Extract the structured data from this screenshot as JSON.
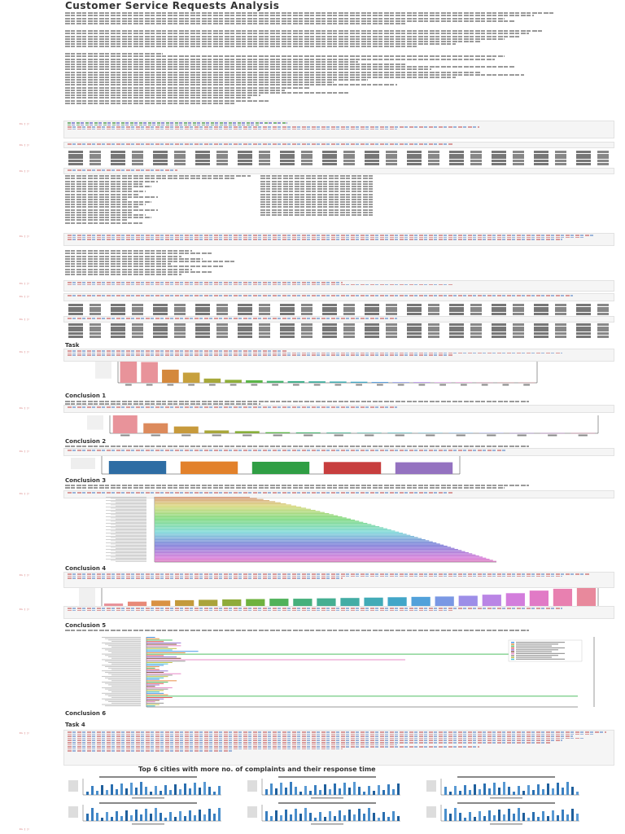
{
  "notebook": {
    "title": "Customer Service Requests Analysis",
    "sections": {
      "conclusion1": "Conclusion 1",
      "conclusion2": "Conclusion 2",
      "conclusion3": "Conclusion 3",
      "conclusion4": "Conclusion 4",
      "conclusion5": "Conclusion 5",
      "conclusion6": "Conclusion 6",
      "task4": "Task 4"
    },
    "cell_prompt": "In [ ]:",
    "final_title": "Top 6 cities with more no. of complaints and their response time"
  },
  "charts": {
    "chart1": {
      "type": "bar",
      "values": [
        100,
        98,
        62,
        48,
        20,
        14,
        12,
        9,
        8,
        7,
        6,
        5,
        4,
        3,
        3,
        2,
        2,
        1,
        1,
        1
      ],
      "colors": [
        "#e8939a",
        "#e8939a",
        "#d4883c",
        "#c7a03d",
        "#a7a83a",
        "#8fae3a",
        "#5bb548",
        "#49b370",
        "#45b08d",
        "#44ae9f",
        "#42acb1",
        "#42a6c4",
        "#5fa0dd",
        "#8b94e6",
        "#b188e8",
        "#d07fe0",
        "#e07bc9",
        "#e882ad",
        "#e88c95",
        "#e8939a"
      ]
    },
    "chart2": {
      "type": "bar",
      "values": [
        100,
        56,
        38,
        16,
        12,
        6,
        5,
        4,
        3,
        3,
        2,
        2,
        2,
        1,
        1,
        1
      ],
      "colors": [
        "#e8939a",
        "#dc8a5c",
        "#c79a3c",
        "#a8a63a",
        "#88ae3a",
        "#5bb548",
        "#49b370",
        "#45b08d",
        "#44ae9f",
        "#42acb1",
        "#42a6c4",
        "#5fa0dd",
        "#8b94e6",
        "#b188e8",
        "#d07fe0",
        "#e882ad"
      ]
    },
    "chart3": {
      "type": "bar",
      "values": [
        5.0,
        4.8,
        4.7,
        4.6,
        4.5
      ],
      "colors": [
        "#2e6da4",
        "#e2812b",
        "#2f9e44",
        "#c73e3e",
        "#9472c0"
      ]
    },
    "chart4": {
      "type": "bar",
      "orientation": "horizontal",
      "bar_count": 60
    },
    "chart5": {
      "type": "bar",
      "values": [
        20,
        25,
        28,
        29,
        30,
        31,
        32,
        33,
        33,
        34,
        35,
        36,
        37,
        38,
        39,
        41,
        44,
        48,
        55,
        60,
        62
      ],
      "colors": [
        "#e8939a",
        "#e88a78",
        "#d99244",
        "#c39a3c",
        "#aaa33a",
        "#8fab3a",
        "#6fb23f",
        "#50b25a",
        "#46b07c",
        "#45af92",
        "#43ada5",
        "#42abb7",
        "#42a6c8",
        "#52a1da",
        "#7a98e4",
        "#9d8ee8",
        "#ba85e5",
        "#d37ddc",
        "#e17ac6",
        "#e880b0",
        "#e8899c"
      ]
    },
    "chart6": {
      "type": "bar",
      "orientation": "horizontal",
      "values": [
        2,
        3,
        6,
        4,
        8,
        7,
        8,
        5,
        7,
        6,
        12,
        9,
        95,
        4,
        7,
        8,
        60,
        9,
        6,
        5,
        4,
        3,
        2,
        3,
        5,
        4,
        8,
        6,
        5,
        4,
        3,
        7,
        5,
        4,
        3,
        2,
        6,
        5,
        4,
        3,
        4,
        5,
        100,
        6,
        4,
        3,
        2,
        4,
        3,
        2
      ]
    }
  }
}
